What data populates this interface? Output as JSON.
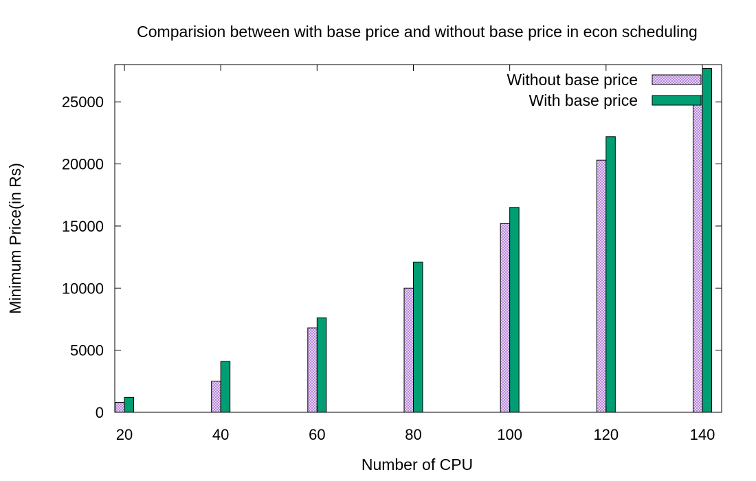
{
  "chart_data": {
    "type": "bar",
    "title": "Comparision between with base price and without base price in econ scheduling",
    "xlabel": "Number of CPU",
    "ylabel": "Minimum Price(in Rs)",
    "categories": [
      "20",
      "40",
      "60",
      "80",
      "100",
      "120",
      "140"
    ],
    "x_ticks": [
      "20",
      "40",
      "60",
      "80",
      "100",
      "120",
      "140"
    ],
    "y_ticks": [
      "0",
      "5000",
      "10000",
      "15000",
      "20000",
      "25000"
    ],
    "ylim": [
      0,
      28000
    ],
    "xlim": [
      18,
      144
    ],
    "grid": false,
    "legend_position": "top-right",
    "series": [
      {
        "name": "Without base price",
        "color": "#c8a2e8",
        "pattern": "crosshatch",
        "x": [
          20,
          40,
          60,
          80,
          100,
          120,
          140
        ],
        "values": [
          800,
          2500,
          6800,
          10000,
          15200,
          20300,
          25500
        ]
      },
      {
        "name": "With base price",
        "color": "#009e73",
        "pattern": "solid",
        "x": [
          20,
          40,
          60,
          80,
          100,
          120,
          140
        ],
        "values": [
          1200,
          4100,
          7600,
          12100,
          16500,
          22200,
          27700
        ]
      }
    ]
  }
}
